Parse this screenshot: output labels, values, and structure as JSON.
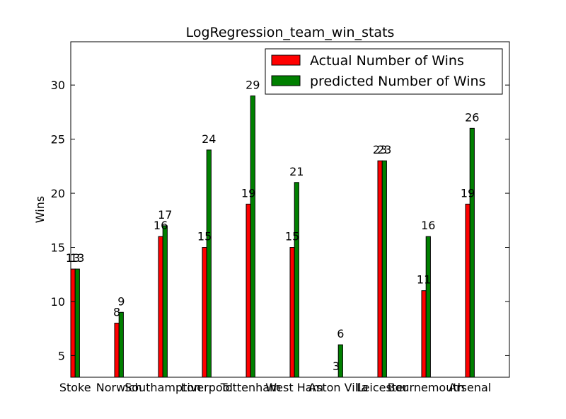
{
  "chart_data": {
    "type": "bar",
    "title": "LogRegression_team_win_stats",
    "xlabel": "",
    "ylabel": "Wins",
    "ylim": [
      3,
      34
    ],
    "yticks": [
      5,
      10,
      15,
      20,
      25,
      30
    ],
    "categories": [
      "Stoke",
      "Norwich",
      "Southampton",
      "Liverpool",
      "Tottenham",
      "West Ham",
      "Aston Villa",
      "Leicester",
      "Bournemouth",
      "Arsenal"
    ],
    "series": [
      {
        "name": "Actual Number of Wins",
        "color": "#ff0000",
        "values": [
          13,
          8,
          16,
          15,
          19,
          15,
          3,
          23,
          11,
          19
        ]
      },
      {
        "name": "predicted Number of Wins",
        "color": "#008000",
        "values": [
          13,
          9,
          17,
          24,
          29,
          21,
          6,
          23,
          16,
          26
        ]
      }
    ],
    "legend_position": "top-right",
    "grid": false
  }
}
